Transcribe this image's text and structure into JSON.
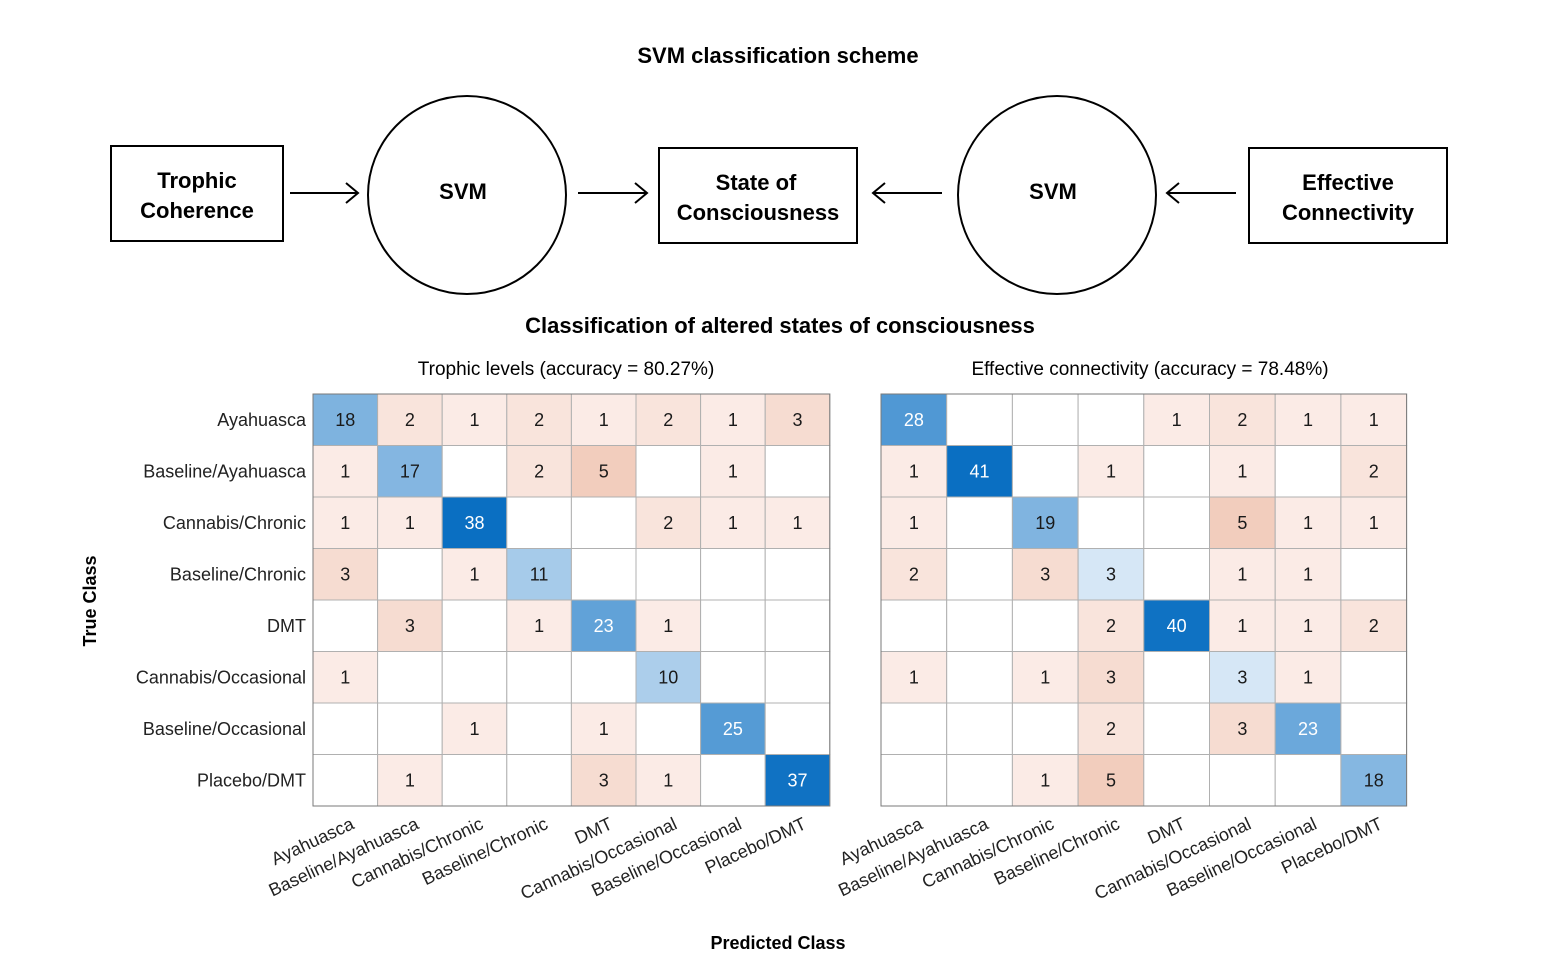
{
  "scheme": {
    "title": "SVM classification scheme",
    "left_input": [
      "Trophic",
      "Coherence"
    ],
    "left_svm": "SVM",
    "center_output": [
      "State of",
      "Consciousness"
    ],
    "right_svm": "SVM",
    "right_input": [
      "Effective",
      "Connectivity"
    ]
  },
  "section_title": "Classification of altered states of consciousness",
  "x_axis_label": "Predicted Class",
  "y_axis_label": "True Class",
  "classes": [
    "Ayahuasca",
    "Baseline/Ayahuasca",
    "Cannabis/Chronic",
    "Baseline/Chronic",
    "DMT",
    "Cannabis/Occasional",
    "Baseline/Occasional",
    "Placebo/DMT"
  ],
  "colors": {
    "diag_max": "#0a6fc2",
    "diag_min": "#e6f0fa",
    "offdiag_max": "#f2cdbd",
    "offdiag_min": "#fdf3f0",
    "grid": "#b0b0b0"
  },
  "chart_data": [
    {
      "type": "heatmap",
      "title": "Trophic levels (accuracy = 80.27%)",
      "xlabel": "Predicted Class",
      "ylabel": "True Class",
      "matrix": [
        [
          18,
          2,
          1,
          2,
          1,
          2,
          1,
          3
        ],
        [
          1,
          17,
          null,
          2,
          5,
          null,
          1,
          null
        ],
        [
          1,
          1,
          38,
          null,
          null,
          2,
          1,
          1
        ],
        [
          3,
          null,
          1,
          11,
          null,
          null,
          null,
          null
        ],
        [
          null,
          3,
          null,
          1,
          23,
          1,
          null,
          null
        ],
        [
          1,
          null,
          null,
          null,
          null,
          10,
          null,
          null
        ],
        [
          null,
          null,
          1,
          null,
          1,
          null,
          25,
          null
        ],
        [
          null,
          1,
          null,
          null,
          3,
          1,
          null,
          37
        ]
      ]
    },
    {
      "type": "heatmap",
      "title": "Effective connectivity (accuracy = 78.48%)",
      "xlabel": "Predicted Class",
      "ylabel": "True Class",
      "matrix": [
        [
          28,
          null,
          null,
          null,
          1,
          2,
          1,
          1
        ],
        [
          1,
          41,
          null,
          1,
          null,
          1,
          null,
          2
        ],
        [
          1,
          null,
          19,
          null,
          null,
          5,
          1,
          1
        ],
        [
          2,
          null,
          3,
          3,
          null,
          1,
          1,
          null
        ],
        [
          null,
          null,
          null,
          2,
          40,
          1,
          1,
          2
        ],
        [
          1,
          null,
          1,
          3,
          null,
          3,
          1,
          null
        ],
        [
          null,
          null,
          null,
          2,
          null,
          3,
          23,
          null
        ],
        [
          null,
          null,
          1,
          5,
          null,
          null,
          null,
          18
        ]
      ]
    }
  ]
}
